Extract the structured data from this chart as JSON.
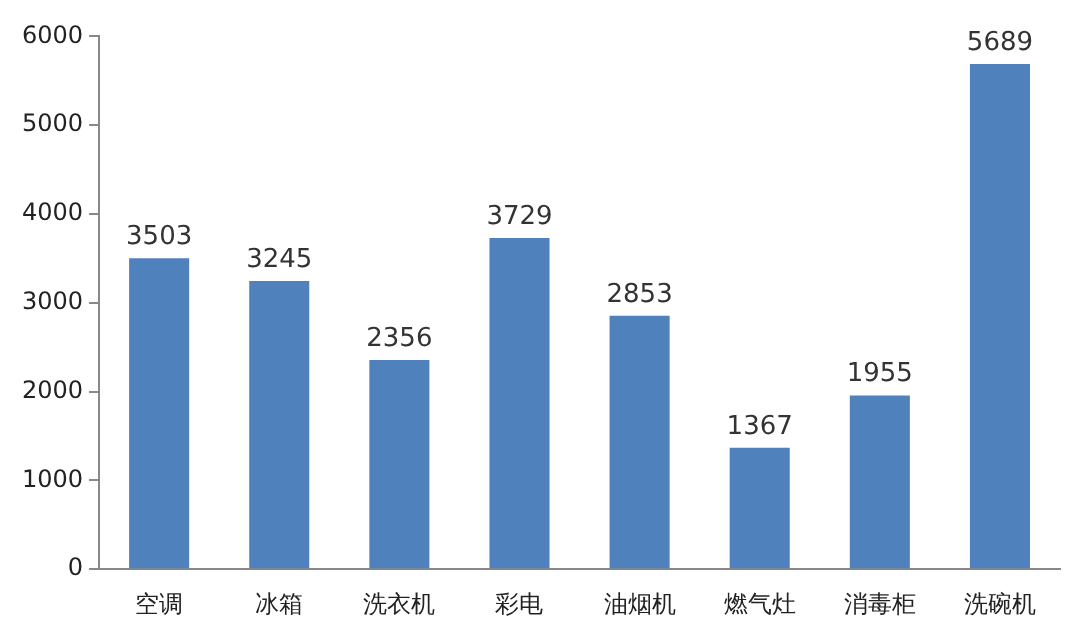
{
  "chart_data": {
    "type": "bar",
    "categories": [
      "空调",
      "冰箱",
      "洗衣机",
      "彩电",
      "油烟机",
      "燃气灶",
      "消毒柜",
      "洗碗机"
    ],
    "values": [
      3503,
      3245,
      2356,
      3729,
      2853,
      1367,
      1955,
      5689
    ],
    "color": "#4f81bd",
    "ylim": [
      0,
      6000
    ],
    "yticks": [
      0,
      1000,
      2000,
      3000,
      4000,
      5000,
      6000
    ],
    "grid": false,
    "data_labels": true,
    "legend": false
  }
}
